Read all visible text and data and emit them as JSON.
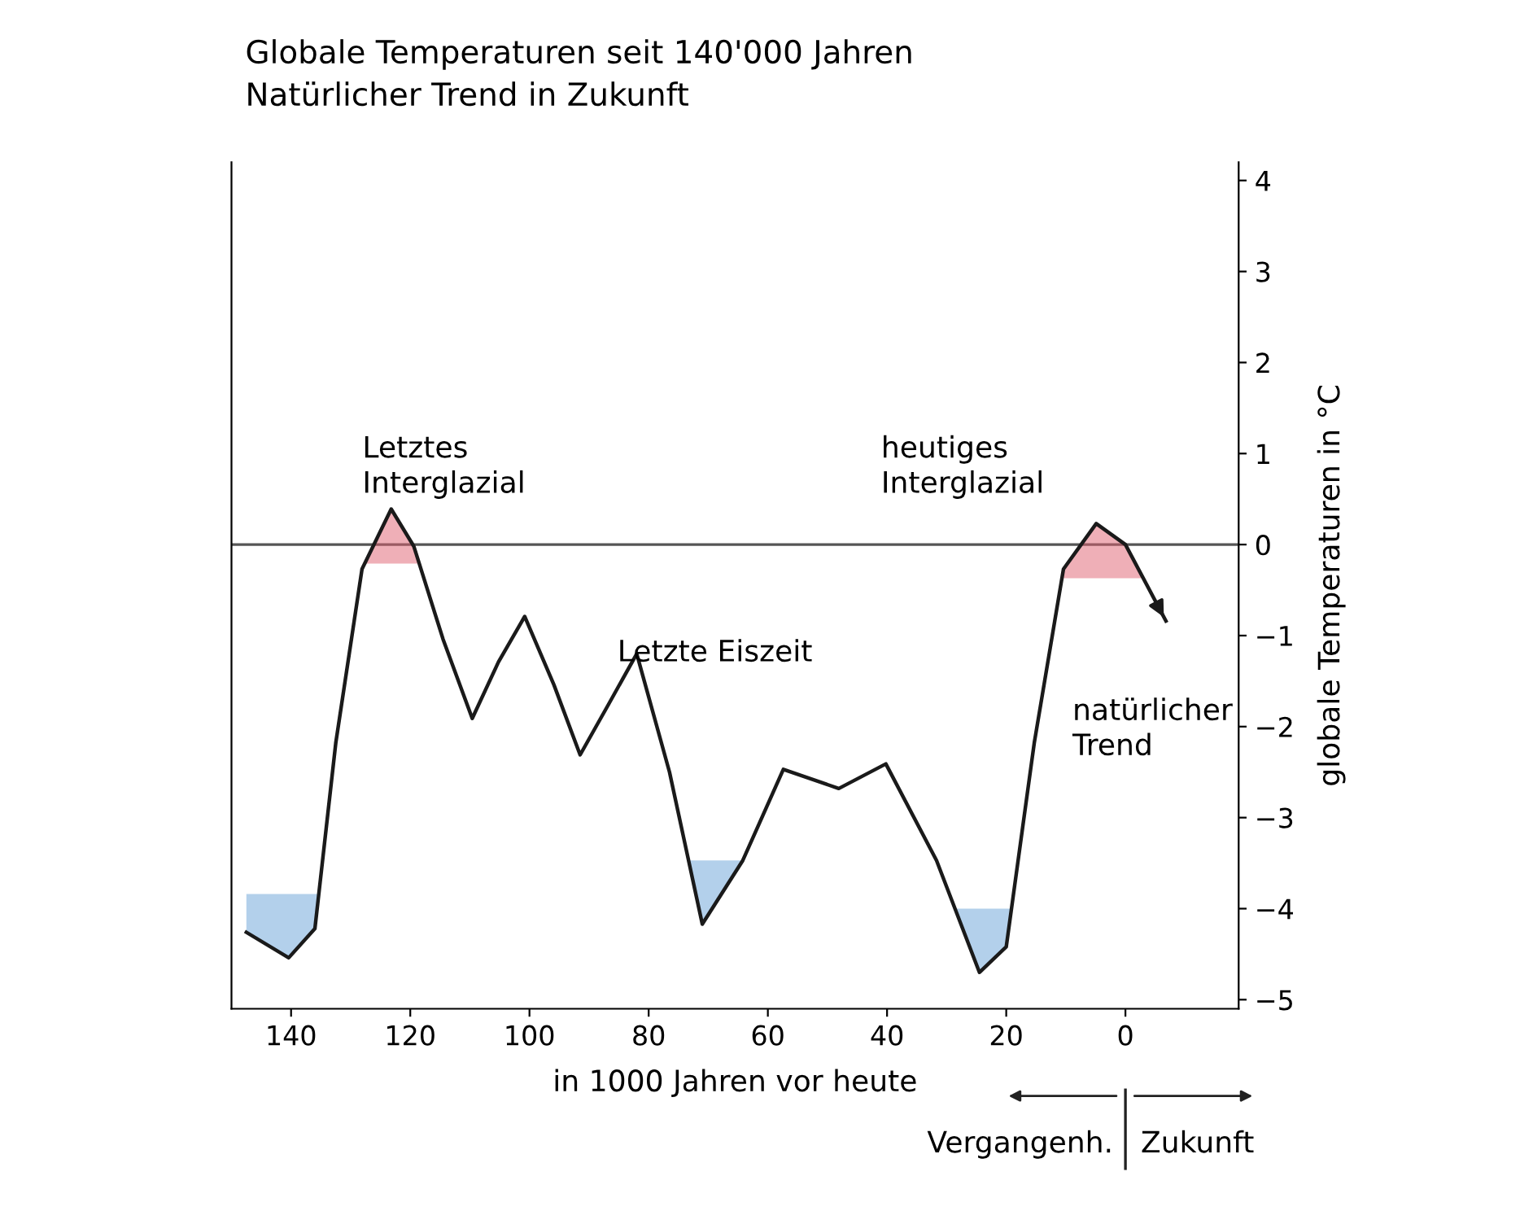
{
  "chart_data": {
    "type": "line",
    "title": "Globale Temperaturen seit 140'000 Jahren",
    "subtitle": "Natürlicher Trend in Zukunft",
    "xlabel": "in 1000 Jahren vor heute",
    "ylabel": "globale Temperaturen in °C",
    "series": [
      {
        "color": "#1a1a1a",
        "x": [
          147.5,
          140.4,
          136,
          132.5,
          128.1,
          123.2,
          119.4,
          114.5,
          109.6,
          105.2,
          100.8,
          95.9,
          91.5,
          86.6,
          82,
          76.5,
          71,
          64.2,
          57.4,
          48.1,
          40.2,
          31.7,
          24.5,
          20,
          15.3,
          10.4,
          4.9,
          0,
          -6.8
        ],
        "values": [
          -4.26,
          -4.54,
          -4.22,
          -2.18,
          -0.27,
          0.39,
          -0.02,
          -1.04,
          -1.91,
          -1.29,
          -0.79,
          -1.54,
          -2.31,
          -1.74,
          -1.2,
          -2.5,
          -4.17,
          -3.47,
          -2.47,
          -2.68,
          -2.41,
          -3.47,
          -4.7,
          -4.42,
          -2.18,
          -0.27,
          0.23,
          0,
          -0.84
        ]
      }
    ],
    "xlim": [
      150,
      -19
    ],
    "xticks": [
      140,
      120,
      100,
      80,
      60,
      40,
      20,
      0
    ],
    "ylim": [
      -5.1,
      4.2
    ],
    "yticks": [
      -5,
      -4,
      -3,
      -2,
      -1,
      0,
      1,
      2,
      3,
      4
    ],
    "ref_lines": [
      {
        "axis": "y",
        "value": 0,
        "color": "#555555"
      }
    ],
    "annotations": [
      "Letztes\nInterglazial",
      "heutiges\nInterglazial",
      "Letzte Eiszeit",
      "natürlicher\nTrend",
      "Vergangenh.",
      "Zukunft"
    ],
    "grid": false,
    "legend": false,
    "marker": "none",
    "line_style": "solid"
  }
}
